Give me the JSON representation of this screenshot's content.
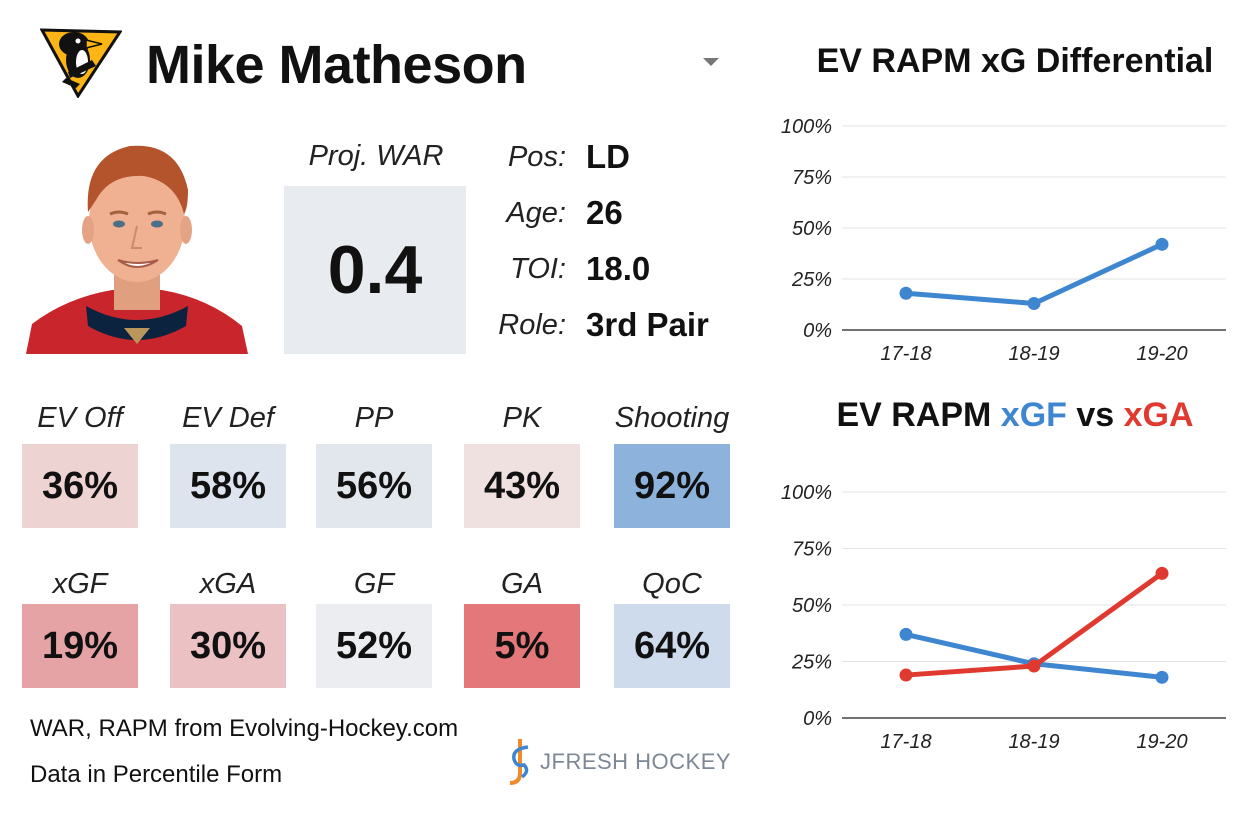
{
  "header": {
    "player_name": "Mike Matheson"
  },
  "war": {
    "label": "Proj. WAR",
    "value": "0.4"
  },
  "bio": [
    {
      "label": "Pos:",
      "value": "LD"
    },
    {
      "label": "Age:",
      "value": "26"
    },
    {
      "label": "TOI:",
      "value": "18.0"
    },
    {
      "label": "Role:",
      "value": "3rd Pair"
    }
  ],
  "stats_row1": [
    {
      "label": "EV Off",
      "value": "36%",
      "color": "#eed3d3"
    },
    {
      "label": "EV Def",
      "value": "58%",
      "color": "#dde4ed"
    },
    {
      "label": "PP",
      "value": "56%",
      "color": "#e2e7ee"
    },
    {
      "label": "PK",
      "value": "43%",
      "color": "#f0e1e1"
    },
    {
      "label": "Shooting",
      "value": "92%",
      "color": "#8db3dd"
    }
  ],
  "stats_row2": [
    {
      "label": "xGF",
      "value": "19%",
      "color": "#e6a3a6"
    },
    {
      "label": "xGA",
      "value": "30%",
      "color": "#ebc1c3"
    },
    {
      "label": "GF",
      "value": "52%",
      "color": "#ebedf1"
    },
    {
      "label": "GA",
      "value": "5%",
      "color": "#e37779"
    },
    {
      "label": "QoC",
      "value": "64%",
      "color": "#cddbec"
    }
  ],
  "footer": {
    "line1": "WAR, RAPM from  Evolving-Hockey.com",
    "line2": "Data in Percentile Form",
    "brand": "JFRESH HOCKEY"
  },
  "colors": {
    "blue": "#3f86d0",
    "red": "#e03a30"
  },
  "chart_data": [
    {
      "type": "line",
      "title": "EV RAPM xG Differential",
      "categories": [
        "17-18",
        "18-19",
        "19-20"
      ],
      "series": [
        {
          "name": "xG Differential",
          "values": [
            18,
            13,
            42
          ],
          "color": "#3f86d0"
        }
      ],
      "ylim": [
        0,
        100
      ],
      "yticks": [
        0,
        25,
        50,
        75,
        100
      ],
      "ytick_labels": [
        "0%",
        "25%",
        "50%",
        "75%",
        "100%"
      ],
      "grid": true
    },
    {
      "type": "line",
      "title_parts": [
        {
          "text": "EV RAPM ",
          "color": "#111111"
        },
        {
          "text": "xGF",
          "color": "#3f86d0"
        },
        {
          "text": " vs ",
          "color": "#111111"
        },
        {
          "text": "xGA",
          "color": "#e03a30"
        }
      ],
      "categories": [
        "17-18",
        "18-19",
        "19-20"
      ],
      "series": [
        {
          "name": "xGF",
          "values": [
            37,
            24,
            18
          ],
          "color": "#3f86d0"
        },
        {
          "name": "xGA",
          "values": [
            19,
            23,
            64
          ],
          "color": "#e03a30"
        }
      ],
      "ylim": [
        0,
        100
      ],
      "yticks": [
        0,
        25,
        50,
        75,
        100
      ],
      "ytick_labels": [
        "0%",
        "25%",
        "50%",
        "75%",
        "100%"
      ],
      "grid": true
    }
  ]
}
